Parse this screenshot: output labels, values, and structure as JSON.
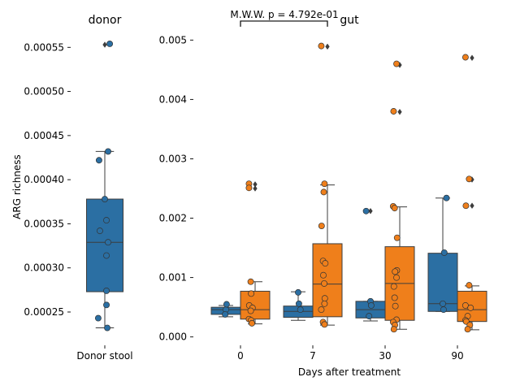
{
  "colors": {
    "blue": "#2b6fa3",
    "orange": "#ef7f1b",
    "whisker": "#3d3d3d",
    "flier": "#3d3d3d"
  },
  "chart_data": [
    {
      "type": "box",
      "title": "donor",
      "ylabel": "ARG richness",
      "xlabel": "",
      "categories": [
        "Donor stool"
      ],
      "ylim": [
        0.000215,
        0.000565
      ],
      "yticks": [
        0.00025,
        0.0003,
        0.00035,
        0.0004,
        0.00045,
        0.0005,
        0.00055
      ],
      "ytick_labels": [
        "0.00025",
        "0.00030",
        "0.00035",
        "0.00040",
        "0.00045",
        "0.00050",
        "0.00055"
      ],
      "grid": false,
      "boxes": [
        {
          "category": "Donor stool",
          "color": "blue",
          "q1": 0.000273,
          "median": 0.000329,
          "q3": 0.000378,
          "whisker_low": 0.000232,
          "whisker_high": 0.000432,
          "outliers": [
            0.000553
          ]
        }
      ],
      "points": [
        {
          "category": "Donor stool",
          "jitter": 0.3,
          "y": 0.000554,
          "color": "blue"
        },
        {
          "category": "Donor stool",
          "jitter": 0.2,
          "y": 0.000432,
          "color": "blue"
        },
        {
          "category": "Donor stool",
          "jitter": -0.35,
          "y": 0.000422,
          "color": "blue"
        },
        {
          "category": "Donor stool",
          "jitter": 0.0,
          "y": 0.000378,
          "color": "blue"
        },
        {
          "category": "Donor stool",
          "jitter": 0.1,
          "y": 0.000354,
          "color": "blue"
        },
        {
          "category": "Donor stool",
          "jitter": -0.3,
          "y": 0.000342,
          "color": "blue"
        },
        {
          "category": "Donor stool",
          "jitter": 0.2,
          "y": 0.000329,
          "color": "blue"
        },
        {
          "category": "Donor stool",
          "jitter": 0.1,
          "y": 0.000314,
          "color": "blue"
        },
        {
          "category": "Donor stool",
          "jitter": 0.1,
          "y": 0.000274,
          "color": "blue"
        },
        {
          "category": "Donor stool",
          "jitter": 0.1,
          "y": 0.000258,
          "color": "blue"
        },
        {
          "category": "Donor stool",
          "jitter": -0.4,
          "y": 0.000243,
          "color": "blue"
        },
        {
          "category": "Donor stool",
          "jitter": 0.15,
          "y": 0.000232,
          "color": "blue"
        }
      ]
    },
    {
      "type": "box",
      "title": "gut",
      "xlabel": "Days after treatment",
      "ylabel": "",
      "categories": [
        "0",
        "7",
        "30",
        "90"
      ],
      "ylim": [
        -0.0001,
        0.0051
      ],
      "yticks": [
        0.0,
        0.001,
        0.002,
        0.003,
        0.004,
        0.005
      ],
      "ytick_labels": [
        "0.000",
        "0.001",
        "0.002",
        "0.003",
        "0.004",
        "0.005"
      ],
      "grid": false,
      "series": [
        {
          "color": "blue"
        },
        {
          "color": "orange"
        }
      ],
      "annotation": {
        "text": "M.W.W. p = 4.792e-01",
        "from_category": "0",
        "to_category": "7",
        "y": 0.00532
      },
      "boxes": [
        {
          "category": "0",
          "series": 0,
          "q1": 0.00038,
          "median": 0.00046,
          "q3": 0.0005,
          "whisker_low": 0.00034,
          "whisker_high": 0.00053,
          "outliers": []
        },
        {
          "category": "0",
          "series": 1,
          "q1": 0.0003,
          "median": 0.00046,
          "q3": 0.00077,
          "whisker_low": 0.00022,
          "whisker_high": 0.00093,
          "outliers": [
            0.00257,
            0.0025
          ]
        },
        {
          "category": "7",
          "series": 0,
          "q1": 0.00033,
          "median": 0.00043,
          "q3": 0.00052,
          "whisker_low": 0.00028,
          "whisker_high": 0.00076,
          "outliers": []
        },
        {
          "category": "7",
          "series": 1,
          "q1": 0.00034,
          "median": 0.00089,
          "q3": 0.00157,
          "whisker_low": 0.0002,
          "whisker_high": 0.00256,
          "outliers": [
            0.00489
          ]
        },
        {
          "category": "30",
          "series": 0,
          "q1": 0.00032,
          "median": 0.00046,
          "q3": 0.0006,
          "whisker_low": 0.00027,
          "whisker_high": 0.0006,
          "outliers": [
            0.00212
          ]
        },
        {
          "category": "30",
          "series": 1,
          "q1": 0.00028,
          "median": 0.0009,
          "q3": 0.00152,
          "whisker_low": 0.00013,
          "whisker_high": 0.00219,
          "outliers": [
            0.00379,
            0.00458
          ]
        },
        {
          "category": "90",
          "series": 0,
          "q1": 0.00043,
          "median": 0.00056,
          "q3": 0.00141,
          "whisker_low": 0.00043,
          "whisker_high": 0.00234,
          "outliers": []
        },
        {
          "category": "90",
          "series": 1,
          "q1": 0.00026,
          "median": 0.00046,
          "q3": 0.00077,
          "whisker_low": 0.00012,
          "whisker_high": 0.00086,
          "outliers": [
            0.00265,
            0.00221,
            0.0047
          ]
        }
      ],
      "points": [
        {
          "category": "0",
          "series": 0,
          "jitter": 0.0,
          "y": 0.00046,
          "color": "blue"
        },
        {
          "category": "0",
          "series": 0,
          "jitter": 0.05,
          "y": 0.00055,
          "color": "blue"
        },
        {
          "category": "0",
          "series": 0,
          "jitter": -0.05,
          "y": 0.00038,
          "color": "blue"
        },
        {
          "category": "0",
          "series": 1,
          "jitter": -0.42,
          "y": 0.00258,
          "color": "orange"
        },
        {
          "category": "0",
          "series": 1,
          "jitter": -0.42,
          "y": 0.00251,
          "color": "orange"
        },
        {
          "category": "0",
          "series": 1,
          "jitter": -0.3,
          "y": 0.00093,
          "color": "orange"
        },
        {
          "category": "0",
          "series": 1,
          "jitter": -0.27,
          "y": 0.00073,
          "color": "orange"
        },
        {
          "category": "0",
          "series": 1,
          "jitter": -0.4,
          "y": 0.00053,
          "color": "orange"
        },
        {
          "category": "0",
          "series": 1,
          "jitter": -0.18,
          "y": 0.00049,
          "color": "orange"
        },
        {
          "category": "0",
          "series": 1,
          "jitter": -0.3,
          "y": 0.00044,
          "color": "orange"
        },
        {
          "category": "0",
          "series": 1,
          "jitter": -0.42,
          "y": 0.0003,
          "color": "orange"
        },
        {
          "category": "0",
          "series": 1,
          "jitter": -0.28,
          "y": 0.00028,
          "color": "orange"
        },
        {
          "category": "0",
          "series": 1,
          "jitter": -0.22,
          "y": 0.00023,
          "color": "orange"
        },
        {
          "category": "7",
          "series": 0,
          "jitter": 0.0,
          "y": 0.00075,
          "color": "blue"
        },
        {
          "category": "7",
          "series": 0,
          "jitter": 0.05,
          "y": 0.00056,
          "color": "blue"
        },
        {
          "category": "7",
          "series": 0,
          "jitter": 0.15,
          "y": 0.00046,
          "color": "blue"
        },
        {
          "category": "7",
          "series": 1,
          "jitter": -0.42,
          "y": 0.0049,
          "color": "orange"
        },
        {
          "category": "7",
          "series": 1,
          "jitter": -0.2,
          "y": 0.00258,
          "color": "orange"
        },
        {
          "category": "7",
          "series": 1,
          "jitter": -0.25,
          "y": 0.00244,
          "color": "orange"
        },
        {
          "category": "7",
          "series": 1,
          "jitter": -0.4,
          "y": 0.00187,
          "color": "orange"
        },
        {
          "category": "7",
          "series": 1,
          "jitter": -0.3,
          "y": 0.00128,
          "color": "orange"
        },
        {
          "category": "7",
          "series": 1,
          "jitter": -0.15,
          "y": 0.00124,
          "color": "orange"
        },
        {
          "category": "7",
          "series": 1,
          "jitter": -0.28,
          "y": 0.00104,
          "color": "orange"
        },
        {
          "category": "7",
          "series": 1,
          "jitter": -0.22,
          "y": 0.0009,
          "color": "orange"
        },
        {
          "category": "7",
          "series": 1,
          "jitter": -0.18,
          "y": 0.00065,
          "color": "orange"
        },
        {
          "category": "7",
          "series": 1,
          "jitter": -0.2,
          "y": 0.00056,
          "color": "orange"
        },
        {
          "category": "7",
          "series": 1,
          "jitter": -0.42,
          "y": 0.00046,
          "color": "orange"
        },
        {
          "category": "7",
          "series": 1,
          "jitter": -0.3,
          "y": 0.00025,
          "color": "orange"
        },
        {
          "category": "7",
          "series": 1,
          "jitter": -0.2,
          "y": 0.00021,
          "color": "orange"
        },
        {
          "category": "30",
          "series": 0,
          "jitter": -0.3,
          "y": 0.00212,
          "color": "blue"
        },
        {
          "category": "30",
          "series": 0,
          "jitter": 0.0,
          "y": 0.0006,
          "color": "blue"
        },
        {
          "category": "30",
          "series": 0,
          "jitter": 0.05,
          "y": 0.00053,
          "color": "blue"
        },
        {
          "category": "30",
          "series": 0,
          "jitter": -0.1,
          "y": 0.00035,
          "color": "blue"
        },
        {
          "category": "30",
          "series": 1,
          "jitter": -0.22,
          "y": 0.0046,
          "color": "orange"
        },
        {
          "category": "30",
          "series": 1,
          "jitter": -0.42,
          "y": 0.0038,
          "color": "orange"
        },
        {
          "category": "30",
          "series": 1,
          "jitter": -0.45,
          "y": 0.0022,
          "color": "orange"
        },
        {
          "category": "30",
          "series": 1,
          "jitter": -0.35,
          "y": 0.00217,
          "color": "orange"
        },
        {
          "category": "30",
          "series": 1,
          "jitter": -0.18,
          "y": 0.00167,
          "color": "orange"
        },
        {
          "category": "30",
          "series": 1,
          "jitter": -0.2,
          "y": 0.00112,
          "color": "orange"
        },
        {
          "category": "30",
          "series": 1,
          "jitter": -0.32,
          "y": 0.0011,
          "color": "orange"
        },
        {
          "category": "30",
          "series": 1,
          "jitter": -0.22,
          "y": 0.001,
          "color": "orange"
        },
        {
          "category": "30",
          "series": 1,
          "jitter": -0.4,
          "y": 0.00085,
          "color": "orange"
        },
        {
          "category": "30",
          "series": 1,
          "jitter": -0.35,
          "y": 0.00066,
          "color": "orange"
        },
        {
          "category": "30",
          "series": 1,
          "jitter": -0.3,
          "y": 0.00052,
          "color": "orange"
        },
        {
          "category": "30",
          "series": 1,
          "jitter": -0.22,
          "y": 0.00029,
          "color": "orange"
        },
        {
          "category": "30",
          "series": 1,
          "jitter": -0.45,
          "y": 0.00025,
          "color": "orange"
        },
        {
          "category": "30",
          "series": 1,
          "jitter": -0.33,
          "y": 0.0002,
          "color": "orange"
        },
        {
          "category": "30",
          "series": 1,
          "jitter": -0.4,
          "y": 0.00013,
          "color": "orange"
        },
        {
          "category": "90",
          "series": 0,
          "jitter": 0.25,
          "y": 0.00234,
          "color": "blue"
        },
        {
          "category": "90",
          "series": 0,
          "jitter": 0.1,
          "y": 0.00142,
          "color": "blue"
        },
        {
          "category": "90",
          "series": 0,
          "jitter": 0.0,
          "y": 0.00056,
          "color": "blue"
        },
        {
          "category": "90",
          "series": 0,
          "jitter": 0.05,
          "y": 0.00046,
          "color": "blue"
        },
        {
          "category": "90",
          "series": 1,
          "jitter": -0.45,
          "y": 0.00471,
          "color": "orange"
        },
        {
          "category": "90",
          "series": 1,
          "jitter": -0.2,
          "y": 0.00266,
          "color": "orange"
        },
        {
          "category": "90",
          "series": 1,
          "jitter": -0.42,
          "y": 0.00221,
          "color": "orange"
        },
        {
          "category": "90",
          "series": 1,
          "jitter": -0.2,
          "y": 0.00087,
          "color": "orange"
        },
        {
          "category": "90",
          "series": 1,
          "jitter": -0.45,
          "y": 0.00053,
          "color": "orange"
        },
        {
          "category": "90",
          "series": 1,
          "jitter": -0.1,
          "y": 0.00049,
          "color": "orange"
        },
        {
          "category": "90",
          "series": 1,
          "jitter": -0.3,
          "y": 0.00035,
          "color": "orange"
        },
        {
          "category": "90",
          "series": 1,
          "jitter": -0.45,
          "y": 0.00028,
          "color": "orange"
        },
        {
          "category": "90",
          "series": 1,
          "jitter": -0.4,
          "y": 0.00026,
          "color": "orange"
        },
        {
          "category": "90",
          "series": 1,
          "jitter": -0.15,
          "y": 0.0002,
          "color": "orange"
        },
        {
          "category": "90",
          "series": 1,
          "jitter": -0.3,
          "y": 0.00013,
          "color": "orange"
        }
      ]
    }
  ]
}
